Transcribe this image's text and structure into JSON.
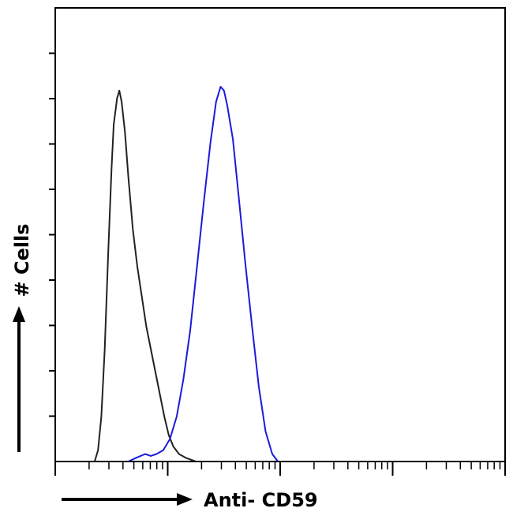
{
  "chart_data": {
    "type": "line",
    "title": "",
    "xlabel": "Anti- CD59",
    "ylabel": "# Cells",
    "x_scale": "log",
    "x_decades": 4,
    "y_ticks": 9,
    "grid": false,
    "legend": "none",
    "series": [
      {
        "color": "#222222",
        "points": [
          [
            0.35,
            0
          ],
          [
            0.38,
            0.03
          ],
          [
            0.41,
            0.12
          ],
          [
            0.44,
            0.3
          ],
          [
            0.47,
            0.55
          ],
          [
            0.5,
            0.78
          ],
          [
            0.52,
            0.9
          ],
          [
            0.55,
            0.97
          ],
          [
            0.57,
            0.99
          ],
          [
            0.59,
            0.96
          ],
          [
            0.62,
            0.88
          ],
          [
            0.65,
            0.76
          ],
          [
            0.69,
            0.62
          ],
          [
            0.73,
            0.52
          ],
          [
            0.77,
            0.44
          ],
          [
            0.81,
            0.36
          ],
          [
            0.85,
            0.3
          ],
          [
            0.89,
            0.24
          ],
          [
            0.93,
            0.18
          ],
          [
            0.97,
            0.12
          ],
          [
            1.01,
            0.07
          ],
          [
            1.05,
            0.04
          ],
          [
            1.1,
            0.02
          ],
          [
            1.16,
            0.01
          ],
          [
            1.25,
            0
          ]
        ]
      },
      {
        "color": "#1a1adc",
        "points": [
          [
            0.65,
            0
          ],
          [
            0.72,
            0.01
          ],
          [
            0.8,
            0.02
          ],
          [
            0.85,
            0.015
          ],
          [
            0.9,
            0.02
          ],
          [
            0.96,
            0.03
          ],
          [
            1.02,
            0.06
          ],
          [
            1.08,
            0.12
          ],
          [
            1.14,
            0.22
          ],
          [
            1.2,
            0.35
          ],
          [
            1.26,
            0.52
          ],
          [
            1.32,
            0.69
          ],
          [
            1.38,
            0.85
          ],
          [
            1.43,
            0.96
          ],
          [
            1.47,
            1.0
          ],
          [
            1.5,
            0.99
          ],
          [
            1.53,
            0.95
          ],
          [
            1.58,
            0.86
          ],
          [
            1.63,
            0.71
          ],
          [
            1.69,
            0.53
          ],
          [
            1.75,
            0.36
          ],
          [
            1.81,
            0.2
          ],
          [
            1.87,
            0.08
          ],
          [
            1.93,
            0.02
          ],
          [
            1.98,
            0
          ]
        ]
      }
    ]
  }
}
